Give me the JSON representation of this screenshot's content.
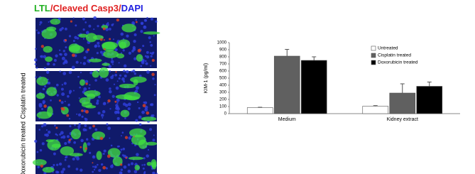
{
  "figure": {
    "image_title": [
      "LTL",
      "/Cleaved Casp3/",
      "DAPI"
    ],
    "panel_labels": [
      "Cisplatin treated",
      "Doxorubicin treated"
    ]
  },
  "chart_data": {
    "type": "bar",
    "ylabel": "KIM-1 (pg/ml)",
    "categories": [
      "Medium",
      "Kidney extract"
    ],
    "series": [
      {
        "name": "Untreated",
        "color": "#ffffff",
        "values": [
          85,
          105
        ],
        "errors": [
          5,
          8
        ]
      },
      {
        "name": "Cisplatin treated",
        "color": "#606060",
        "values": [
          810,
          290
        ],
        "errors": [
          95,
          130
        ]
      },
      {
        "name": "Doxorubicin treated",
        "color": "#000000",
        "values": [
          750,
          385
        ],
        "errors": [
          50,
          60
        ]
      }
    ],
    "ylim": [
      0,
      1000
    ],
    "yticks": [
      0,
      100,
      200,
      300,
      400,
      500,
      600,
      700,
      800,
      900,
      1000
    ],
    "legend": "upper right"
  }
}
